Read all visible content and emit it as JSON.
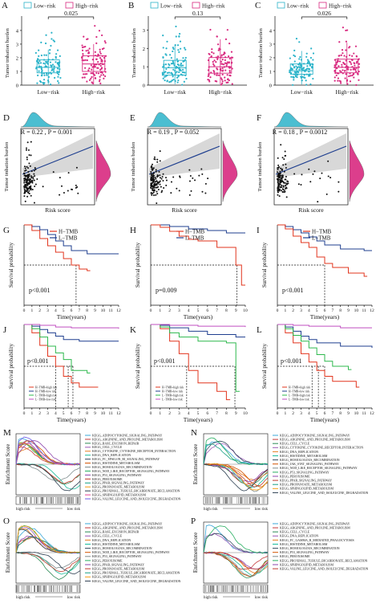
{
  "colors": {
    "low": "#2bb3c9",
    "high": "#d8297f",
    "black": "#111111",
    "blue_line": "#1f3f8f",
    "red_line": "#e2351e",
    "band": "#c8c8c8"
  },
  "box_panels": [
    {
      "letter": "A",
      "pval": "0.025",
      "legend_title": "",
      "leg_low": "Low−risk",
      "leg_high": "High−risk",
      "ylabel": "Tumor tmbation burden",
      "xcat_low": "Low−risk",
      "xcat_high": "High−risk",
      "yticks": [
        "0",
        "1",
        "2",
        "3",
        "4"
      ]
    },
    {
      "letter": "B",
      "pval": "0.13",
      "legend_title": "",
      "leg_low": "Low−risk",
      "leg_high": "High−risk",
      "ylabel": "Tumor tmbation burden",
      "xcat_low": "Low−risk",
      "xcat_high": "High−risk",
      "yticks": [
        "0",
        "1",
        "2",
        "3"
      ]
    },
    {
      "letter": "C",
      "pval": "0.026",
      "legend_title": "",
      "leg_low": "Low−risk",
      "leg_high": "High−risk",
      "ylabel": "Tumor tmbation burden",
      "xcat_low": "Low−risk",
      "xcat_high": "High−risk",
      "yticks": [
        "0",
        "1",
        "2",
        "3",
        "4"
      ]
    }
  ],
  "scatter_panels": [
    {
      "letter": "D",
      "stat": "R = 0.22 , P = 0.001",
      "xlabel": "Risk score",
      "ylabel": "Tumor tmbation burden"
    },
    {
      "letter": "E",
      "stat": "R = 0.19 , P = 0.052",
      "xlabel": "Risk score",
      "ylabel": "Tumor tmbation burden"
    },
    {
      "letter": "F",
      "stat": "R = 0.18 , P = 0.0012",
      "xlabel": "Risk score",
      "ylabel": "Tumor tmbation burden"
    }
  ],
  "km2_panels": [
    {
      "letter": "G",
      "pval": "p<0.001",
      "leg1": "H−TMB",
      "leg2": "L−TMB",
      "xlabel": "Time(years)",
      "ylabel": "Survival probability",
      "xticks": [
        "0",
        "1",
        "2",
        "3",
        "4",
        "5",
        "6",
        "7",
        "8",
        "9",
        "10",
        "11",
        "12"
      ]
    },
    {
      "letter": "H",
      "pval": "p=0.009",
      "leg1": "H−TMB",
      "leg2": "L−TMB",
      "xlabel": "Time(years)",
      "ylabel": "Survival probability",
      "xticks": [
        "0",
        "1",
        "2",
        "3",
        "4",
        "5",
        "6",
        "7",
        "8",
        "9",
        "10"
      ]
    },
    {
      "letter": "I",
      "pval": "p<0.001",
      "leg1": "H−TMB",
      "leg2": "L−TMB",
      "xlabel": "Time(years)",
      "ylabel": "Survival probability",
      "xticks": [
        "0",
        "1",
        "2",
        "3",
        "4",
        "5",
        "6",
        "7",
        "8",
        "9",
        "10",
        "11",
        "12"
      ]
    }
  ],
  "km4_panels": [
    {
      "letter": "J",
      "pval": "p<0.001",
      "xlabel": "Time(years)",
      "ylabel": "Survival probability",
      "legend": [
        "H−TMB+high risk",
        "H−TMB+low risk",
        "L−TMB+high risk",
        "L−TMB+low risk"
      ],
      "xticks": [
        "0",
        "1",
        "2",
        "3",
        "4",
        "5",
        "6",
        "7",
        "8",
        "9",
        "10",
        "11",
        "12"
      ]
    },
    {
      "letter": "K",
      "pval": "p<0.001",
      "xlabel": "Time(years)",
      "ylabel": "Survival probability",
      "legend": [
        "H−TMB+high risk",
        "H−TMB+low risk",
        "L−TMB+high risk",
        "L−TMB+low risk"
      ],
      "xticks": [
        "0",
        "1",
        "2",
        "3",
        "4",
        "5",
        "6",
        "7",
        "8",
        "9",
        "10"
      ]
    },
    {
      "letter": "L",
      "pval": "p<0.001",
      "xlabel": "Time(years)",
      "ylabel": "Survival probability",
      "legend": [
        "H−TMB+high risk",
        "H−TMB+low risk",
        "L−TMB+high risk",
        "L−TMB+low risk"
      ],
      "xticks": [
        "0",
        "1",
        "2",
        "3",
        "4",
        "5",
        "6",
        "7",
        "8",
        "9",
        "10",
        "11",
        "12"
      ]
    }
  ],
  "gsea_panels": [
    {
      "letter": "M",
      "ylabel": "Enrichment Score",
      "left_label": "high risk",
      "right_label": "low risk",
      "pathways": [
        "KEGG_ADIPOCYTOKINE_SIGNALING_PATHWAY",
        "KEGG_ARGININE_AND_PROLINE_METABOLISM",
        "KEGG_BASE_EXCISION_REPAIR",
        "KEGG_CELL_CYCLE",
        "KEGG_CYTOKINE_CYTOKINE_RECEPTOR_INTERACTION",
        "KEGG_DNA_REPLICATION",
        "KEGG_FC_EPSILON_RI_SIGNALING_PATHWAY",
        "KEGG_HISTIDINE_METABOLISM",
        "KEGG_HOMOLOGOUS_RECOMBINATION",
        "KEGG_NOD_LIKE_RECEPTOR_SIGNALING_PATHWAY",
        "KEGG_P53_SIGNALING_PATHWAY",
        "KEGG_PEROXISOME",
        "KEGG_PPAR_SIGNALING_PATHWAY",
        "KEGG_PROPANOATE_METABOLISM",
        "KEGG_PROXIMAL_TUBULE_BICARBONATE_RECLAMATION",
        "KEGG_SPHINGOLIPID_METABOLISM",
        "KEGG_VALINE_LEUCINE_AND_ISOLEUCINE_DEGRADATION"
      ]
    },
    {
      "letter": "N",
      "ylabel": "Enrichment Score",
      "left_label": "high risk",
      "right_label": "low risk",
      "pathways": [
        "KEGG_ADIPOCYTOKINE_SIGNALING_PATHWAY",
        "KEGG_ARGININE_AND_PROLINE_METABOLISM",
        "KEGG_CELL_CYCLE",
        "KEGG_CYTOKINE_CYTOKINE_RECEPTOR_INTERACTION",
        "KEGG_DNA_REPLICATION",
        "KEGG_HISTIDINE_METABOLISM",
        "KEGG_HOMOLOGOUS_RECOMBINATION",
        "KEGG_JAK_STAT_SIGNALING_PATHWAY",
        "KEGG_NOD_LIKE_RECEPTOR_SIGNALING_PATHWAY",
        "KEGG_P53_SIGNALING_PATHWAY",
        "KEGG_PEROXISOME",
        "KEGG_PPAR_SIGNALING_PATHWAY",
        "KEGG_PROPANOATE_METABOLISM",
        "KEGG_SPHINGOLIPID_METABOLISM",
        "KEGG_VALINE_LEUCINE_AND_ISOLEUCINE_DEGRADATION"
      ]
    },
    {
      "letter": "O",
      "ylabel": "Enrichment Score",
      "left_label": "high risk",
      "right_label": "low risk",
      "pathways": [
        "KEGG_ADIPOCYTOKINE_SIGNALING_PATHWAY",
        "KEGG_ARGININE_AND_PROLINE_METABOLISM",
        "KEGG_BASE_EXCISION_REPAIR",
        "KEGG_CELL_CYCLE",
        "KEGG_DNA_REPLICATION",
        "KEGG_HISTIDINE_METABOLISM",
        "KEGG_HOMOLOGOUS_RECOMBINATION",
        "KEGG_NOD_LIKE_RECEPTOR_SIGNALING_PATHWAY",
        "KEGG_P53_SIGNALING_PATHWAY",
        "KEGG_PEROXISOME",
        "KEGG_PPAR_SIGNALING_PATHWAY",
        "KEGG_PROPANOATE_METABOLISM",
        "KEGG_PROXIMAL_TUBULE_BICARBONATE_RECLAMATION",
        "KEGG_SPHINGOLIPID_METABOLISM",
        "KEGG_VALINE_LEUCINE_AND_ISOLEUCINE_DEGRADATION"
      ]
    },
    {
      "letter": "P",
      "ylabel": "Enrichment Score",
      "left_label": "high risk",
      "right_label": "low risk",
      "pathways": [
        "KEGG_ADIPOCYTOKINE_SIGNALING_PATHWAY",
        "KEGG_ARGININE_AND_PROLINE_METABOLISM",
        "KEGG_CELL_CYCLE",
        "KEGG_DNA_REPLICATION",
        "KEGG_FC_GAMMA_R_MEDIATED_PHAGOCYTOSIS",
        "KEGG_HISTIDINE_METABOLISM",
        "KEGG_HOMOLOGOUS_RECOMBINATION",
        "KEGG_P53_SIGNALING_PATHWAY",
        "KEGG_PEROXISOME",
        "KEGG_PROXIMAL_TUBULE_BICARBONATE_RECLAMATION",
        "KEGG_SPHINGOLIPID_METABOLISM",
        "KEGG_VALINE_LEUCINE_AND_ISOLEUCINE_DEGRADATION"
      ]
    }
  ]
}
